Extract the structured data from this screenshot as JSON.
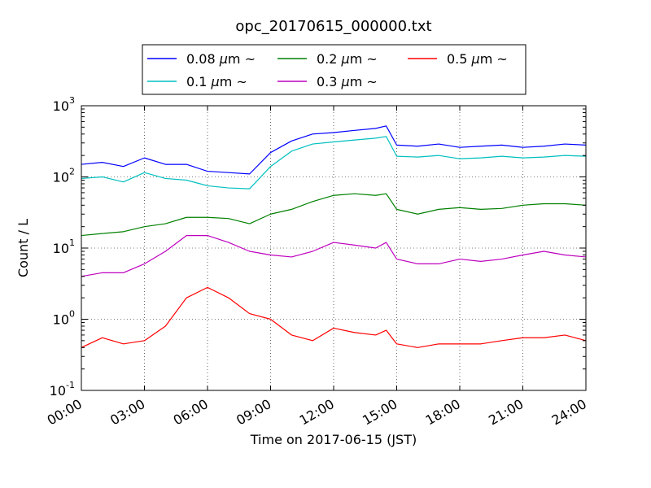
{
  "chart_data": {
    "type": "line",
    "title": "opc_20170615_000000.txt",
    "xlabel": "Time on 2017-06-15 (JST)",
    "ylabel": "Count / L",
    "yscale": "log",
    "ylim": [
      0.1,
      1000
    ],
    "xlim": [
      0,
      24
    ],
    "grid": true,
    "legend_position": "top",
    "x_ticks": [
      "00:00",
      "03:00",
      "06:00",
      "09:00",
      "12:00",
      "15:00",
      "18:00",
      "21:00",
      "24:00"
    ],
    "y_ticks": [
      {
        "base": "10",
        "exp": "-1",
        "value": 0.1
      },
      {
        "base": "10",
        "exp": "0",
        "value": 1
      },
      {
        "base": "10",
        "exp": "1",
        "value": 10
      },
      {
        "base": "10",
        "exp": "2",
        "value": 100
      },
      {
        "base": "10",
        "exp": "3",
        "value": 1000
      }
    ],
    "x": [
      0,
      1,
      2,
      3,
      4,
      5,
      6,
      7,
      8,
      9,
      10,
      11,
      12,
      13,
      14,
      14.5,
      15,
      16,
      17,
      18,
      19,
      20,
      21,
      22,
      23,
      24
    ],
    "series": [
      {
        "name": "0.08 μm ~",
        "legend": {
          "num": "0.08",
          "unit": "μm",
          "tilde": "~"
        },
        "color": "#0000ff",
        "values": [
          150,
          160,
          140,
          185,
          150,
          150,
          120,
          115,
          110,
          220,
          320,
          400,
          420,
          450,
          480,
          520,
          280,
          270,
          290,
          260,
          270,
          280,
          260,
          270,
          290,
          280
        ]
      },
      {
        "name": "0.1 μm ~",
        "legend": {
          "num": "0.1",
          "unit": "μm",
          "tilde": "~"
        },
        "color": "#00bfbf",
        "values": [
          95,
          100,
          85,
          115,
          95,
          90,
          75,
          70,
          68,
          140,
          230,
          290,
          310,
          330,
          350,
          370,
          195,
          190,
          200,
          180,
          185,
          195,
          185,
          190,
          200,
          195
        ]
      },
      {
        "name": "0.2 μm ~",
        "legend": {
          "num": "0.2",
          "unit": "μm",
          "tilde": "~"
        },
        "color": "#008000",
        "values": [
          15,
          16,
          17,
          20,
          22,
          27,
          27,
          26,
          22,
          30,
          35,
          45,
          55,
          58,
          55,
          58,
          35,
          30,
          35,
          37,
          35,
          36,
          40,
          42,
          42,
          40
        ]
      },
      {
        "name": "0.3 μm ~",
        "legend": {
          "num": "0.3",
          "unit": "μm",
          "tilde": "~"
        },
        "color": "#bf00bf",
        "values": [
          4,
          4.5,
          4.5,
          6,
          9,
          15,
          15,
          12,
          9,
          8,
          7.5,
          9,
          12,
          11,
          10,
          12,
          7,
          6,
          6,
          7,
          6.5,
          7,
          8,
          9,
          8,
          7.5
        ]
      },
      {
        "name": "0.5 μm ~",
        "legend": {
          "num": "0.5",
          "unit": "μm",
          "tilde": "~"
        },
        "color": "#ff0000",
        "values": [
          0.4,
          0.55,
          0.45,
          0.5,
          0.8,
          2.0,
          2.8,
          2.0,
          1.2,
          1.0,
          0.6,
          0.5,
          0.75,
          0.65,
          0.6,
          0.7,
          0.45,
          0.4,
          0.45,
          0.45,
          0.45,
          0.5,
          0.55,
          0.55,
          0.6,
          0.5
        ]
      }
    ]
  }
}
